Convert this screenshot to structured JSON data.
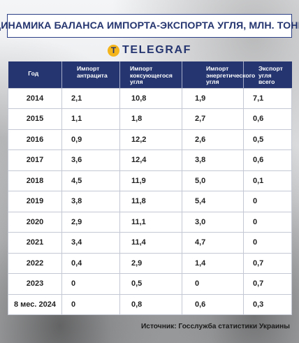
{
  "title": "ДИНАМИКА БАЛАНСА ИМПОРТА-ЭКСПОРТА УГЛЯ, МЛН. ТОНН",
  "logo": {
    "mark": "T",
    "text": "TELEGRAF"
  },
  "source": "Источник: Госслужба статистики Украины",
  "chart_data": {
    "type": "table",
    "title": "ДИНАМИКА БАЛАНСА ИМПОРТА-ЭКСПОРТА УГЛЯ, МЛН. ТОНН",
    "columns": [
      "Год",
      "Импорт антрацита",
      "Импорт коксующегося угля",
      "Импорт энергетического угля",
      "Экспорт угля всего"
    ],
    "rows": [
      [
        "2014",
        "2,1",
        "10,8",
        "1,9",
        "7,1"
      ],
      [
        "2015",
        "1,1",
        "1,8",
        "2,7",
        "0,6"
      ],
      [
        "2016",
        "0,9",
        "12,2",
        "2,6",
        "0,5"
      ],
      [
        "2017",
        "3,6",
        "12,4",
        "3,8",
        "0,6"
      ],
      [
        "2018",
        "4,5",
        "11,9",
        "5,0",
        "0,1"
      ],
      [
        "2019",
        "3,8",
        "11,8",
        "5,4",
        "0"
      ],
      [
        "2020",
        "2,9",
        "11,1",
        "3,0",
        "0"
      ],
      [
        "2021",
        "3,4",
        "11,4",
        "4,7",
        "0"
      ],
      [
        "2022",
        "0,4",
        "2,9",
        "1,4",
        "0,7"
      ],
      [
        "2023",
        "0",
        "0,5",
        "0",
        "0,7"
      ],
      [
        "8 мес. 2024",
        "0",
        "0,8",
        "0,6",
        "0,3"
      ]
    ]
  },
  "colors": {
    "header_bg": "#24356f",
    "title_text": "#24356f",
    "logo_accent": "#f3b41c"
  }
}
